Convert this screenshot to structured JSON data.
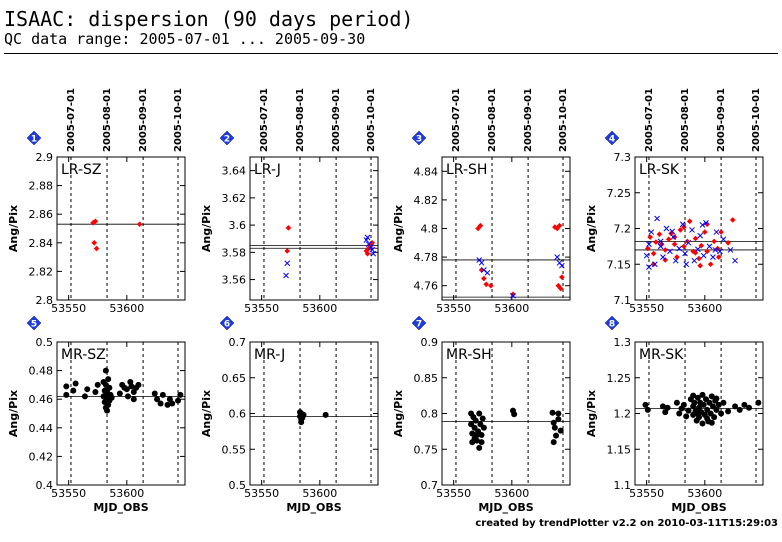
{
  "header": {
    "title": "ISAAC: dispersion (90 days period)",
    "subtitle": "QC data range: 2005-07-01 ... 2005-09-30"
  },
  "footer": {
    "text": "created by trendPlotter v2.2 on 2010-03-11T15:29:03"
  },
  "date_ticks": [
    "2005-07-01",
    "2005-08-01",
    "2005-09-01",
    "2005-10-01"
  ],
  "date_tick_mjd": [
    53552,
    53583,
    53614,
    53644
  ],
  "colors": {
    "series1": "#ff0000",
    "series2": "#0000ff",
    "mr": "#000000",
    "badge": "#1e3cdc"
  },
  "chart_data": [
    {
      "type": "scatter",
      "panel_number": "1",
      "label": "LR-SZ",
      "xlim": [
        53540,
        53650
      ],
      "ylim": [
        2.8,
        2.9
      ],
      "yticks": [
        2.8,
        2.82,
        2.84,
        2.86,
        2.88,
        2.9
      ],
      "xticks": [
        53550,
        53600
      ],
      "ylabel": "Ang/Pix",
      "xlabel": "",
      "reference_lines": [
        2.853
      ],
      "series": [
        {
          "marker": "diamond",
          "color": "#ff0000",
          "x": [
            53571,
            53573,
            53572,
            53574,
            53611
          ],
          "y": [
            2.854,
            2.855,
            2.84,
            2.836,
            2.853
          ]
        }
      ]
    },
    {
      "type": "scatter",
      "panel_number": "2",
      "label": "LR-J",
      "xlim": [
        53540,
        53650
      ],
      "ylim": [
        3.545,
        3.65
      ],
      "yticks": [
        3.56,
        3.58,
        3.6,
        3.62,
        3.64
      ],
      "xticks": [
        53550,
        53600
      ],
      "ylabel": "Ang/Pix",
      "xlabel": "",
      "reference_lines": [
        3.583,
        3.585
      ],
      "series": [
        {
          "marker": "diamond",
          "color": "#ff0000",
          "x": [
            53573,
            53572,
            53640,
            53642,
            53644,
            53645,
            53641
          ],
          "y": [
            3.598,
            3.581,
            3.581,
            3.583,
            3.585,
            3.587,
            3.579
          ]
        },
        {
          "marker": "cross",
          "color": "#0000ff",
          "x": [
            53572,
            53571,
            53640,
            53642,
            53644,
            53645,
            53646,
            53641
          ],
          "y": [
            3.572,
            3.563,
            3.589,
            3.586,
            3.584,
            3.582,
            3.579,
            3.591
          ]
        }
      ]
    },
    {
      "type": "scatter",
      "panel_number": "3",
      "label": "LR-SH",
      "xlim": [
        53540,
        53650
      ],
      "ylim": [
        4.75,
        4.85
      ],
      "yticks": [
        4.76,
        4.78,
        4.8,
        4.82,
        4.84
      ],
      "xticks": [
        53550,
        53600
      ],
      "ylabel": "Ang/Pix",
      "xlabel": "",
      "reference_lines": [
        4.778,
        4.752
      ],
      "series": [
        {
          "marker": "diamond",
          "color": "#ff0000",
          "x": [
            53571,
            53573,
            53574,
            53576,
            53578,
            53582,
            53601,
            53637,
            53639,
            53641,
            53643,
            53640,
            53642
          ],
          "y": [
            4.8,
            4.802,
            4.771,
            4.765,
            4.761,
            4.76,
            4.754,
            4.801,
            4.8,
            4.802,
            4.766,
            4.76,
            4.758
          ]
        },
        {
          "marker": "cross",
          "color": "#0000ff",
          "x": [
            53572,
            53574,
            53576,
            53579,
            53601,
            53639,
            53641,
            53643
          ],
          "y": [
            4.778,
            4.776,
            4.771,
            4.769,
            4.753,
            4.78,
            4.776,
            4.774
          ]
        }
      ]
    },
    {
      "type": "scatter",
      "panel_number": "4",
      "label": "LR-SK",
      "xlim": [
        53540,
        53650
      ],
      "ylim": [
        7.1,
        7.3
      ],
      "yticks": [
        7.1,
        7.15,
        7.2,
        7.25,
        7.3
      ],
      "xticks": [
        53550,
        53600
      ],
      "ylabel": "Ang/Pix",
      "xlabel": "",
      "reference_lines": [
        7.182,
        7.17
      ],
      "series": [
        {
          "marker": "diamond",
          "color": "#ff0000",
          "x": [
            53551,
            53553,
            53556,
            53558,
            53561,
            53563,
            53566,
            53569,
            53571,
            53574,
            53576,
            53579,
            53582,
            53585,
            53587,
            53590,
            53592,
            53595,
            53597,
            53600,
            53602,
            53605,
            53608,
            53611,
            53614,
            53620,
            53624,
            53556,
            53566,
            53574,
            53582,
            53592,
            53602,
            53612,
            53596
          ],
          "y": [
            7.172,
            7.188,
            7.165,
            7.181,
            7.192,
            7.178,
            7.17,
            7.185,
            7.193,
            7.178,
            7.16,
            7.198,
            7.175,
            7.182,
            7.21,
            7.168,
            7.186,
            7.158,
            7.176,
            7.195,
            7.168,
            7.15,
            7.182,
            7.172,
            7.195,
            7.18,
            7.212,
            7.15,
            7.156,
            7.188,
            7.202,
            7.166,
            7.206,
            7.16,
            7.148
          ]
        },
        {
          "marker": "cross",
          "color": "#0000ff",
          "x": [
            53550,
            53552,
            53554,
            53557,
            53559,
            53562,
            53564,
            53567,
            53570,
            53573,
            53575,
            53578,
            53581,
            53583,
            53586,
            53589,
            53591,
            53594,
            53596,
            53599,
            53601,
            53604,
            53607,
            53610,
            53613,
            53616,
            53622,
            53626,
            53552,
            53562,
            53572,
            53584,
            53598,
            53609
          ],
          "y": [
            7.162,
            7.178,
            7.195,
            7.15,
            7.214,
            7.175,
            7.16,
            7.2,
            7.168,
            7.188,
            7.155,
            7.172,
            7.206,
            7.165,
            7.18,
            7.198,
            7.155,
            7.171,
            7.19,
            7.162,
            7.208,
            7.175,
            7.16,
            7.195,
            7.168,
            7.185,
            7.17,
            7.155,
            7.146,
            7.182,
            7.196,
            7.15,
            7.205,
            7.17
          ]
        }
      ]
    },
    {
      "type": "scatter",
      "panel_number": "5",
      "label": "MR-SZ",
      "xlim": [
        53540,
        53650
      ],
      "ylim": [
        0.4,
        0.5
      ],
      "yticks": [
        0.4,
        0.42,
        0.44,
        0.46,
        0.48,
        0.5
      ],
      "xticks": [
        53550,
        53600
      ],
      "ylabel": "Ang/Pix",
      "xlabel": "MJD_OBS",
      "reference_lines": [
        0.462
      ],
      "series": [
        {
          "marker": "circle",
          "color": "#000000",
          "x": [
            53548,
            53548,
            53554,
            53556,
            53564,
            53566,
            53573,
            53575,
            53580,
            53580,
            53581,
            53581,
            53582,
            53582,
            53582,
            53583,
            53583,
            53583,
            53584,
            53584,
            53584,
            53585,
            53585,
            53586,
            53587,
            53594,
            53596,
            53598,
            53600,
            53601,
            53603,
            53604,
            53606,
            53606,
            53608,
            53610,
            53624,
            53626,
            53629,
            53631,
            53635,
            53637,
            53639,
            53644,
            53646
          ],
          "y": [
            0.469,
            0.463,
            0.466,
            0.471,
            0.462,
            0.467,
            0.465,
            0.47,
            0.472,
            0.462,
            0.458,
            0.466,
            0.48,
            0.47,
            0.454,
            0.465,
            0.46,
            0.452,
            0.474,
            0.462,
            0.456,
            0.468,
            0.459,
            0.463,
            0.461,
            0.464,
            0.47,
            0.468,
            0.467,
            0.462,
            0.472,
            0.469,
            0.465,
            0.46,
            0.468,
            0.47,
            0.464,
            0.46,
            0.457,
            0.463,
            0.456,
            0.46,
            0.457,
            0.459,
            0.463
          ]
        }
      ]
    },
    {
      "type": "scatter",
      "panel_number": "6",
      "label": "MR-J",
      "xlim": [
        53540,
        53650
      ],
      "ylim": [
        0.5,
        0.7
      ],
      "yticks": [
        0.5,
        0.55,
        0.6,
        0.65,
        0.7
      ],
      "xticks": [
        53550,
        53600
      ],
      "ylabel": "Ang/Pix",
      "xlabel": "MJD_OBS",
      "reference_lines": [
        0.596
      ],
      "series": [
        {
          "marker": "circle",
          "color": "#000000",
          "x": [
            53583,
            53583,
            53584,
            53584,
            53585,
            53585,
            53586,
            53605
          ],
          "y": [
            0.602,
            0.596,
            0.592,
            0.588,
            0.599,
            0.594,
            0.598,
            0.598
          ]
        }
      ]
    },
    {
      "type": "scatter",
      "panel_number": "7",
      "label": "MR-SH",
      "xlim": [
        53540,
        53650
      ],
      "ylim": [
        0.7,
        0.9
      ],
      "yticks": [
        0.7,
        0.75,
        0.8,
        0.85,
        0.9
      ],
      "xticks": [
        53550,
        53600
      ],
      "ylabel": "Ang/Pix",
      "xlabel": "MJD_OBS",
      "reference_lines": [
        0.789
      ],
      "series": [
        {
          "marker": "circle",
          "color": "#000000",
          "x": [
            53565,
            53565,
            53566,
            53567,
            53568,
            53568,
            53569,
            53570,
            53571,
            53572,
            53573,
            53574,
            53575,
            53576,
            53566,
            53570,
            53574,
            53572,
            53601,
            53602,
            53635,
            53636,
            53637,
            53638,
            53640,
            53642,
            53636,
            53640
          ],
          "y": [
            0.8,
            0.785,
            0.772,
            0.795,
            0.765,
            0.78,
            0.79,
            0.762,
            0.775,
            0.8,
            0.785,
            0.77,
            0.793,
            0.78,
            0.76,
            0.77,
            0.76,
            0.752,
            0.804,
            0.799,
            0.801,
            0.787,
            0.78,
            0.769,
            0.792,
            0.776,
            0.76,
            0.8
          ]
        }
      ]
    },
    {
      "type": "scatter",
      "panel_number": "8",
      "label": "MR-SK",
      "xlim": [
        53540,
        53650
      ],
      "ylim": [
        1.1,
        1.3
      ],
      "yticks": [
        1.1,
        1.15,
        1.2,
        1.25,
        1.3
      ],
      "xticks": [
        53550,
        53600
      ],
      "ylabel": "Ang/Pix",
      "xlabel": "MJD_OBS",
      "reference_lines": [
        1.207
      ],
      "series": [
        {
          "marker": "circle",
          "color": "#000000",
          "x": [
            53549,
            53551,
            53564,
            53566,
            53568,
            53576,
            53578,
            53580,
            53582,
            53584,
            53586,
            53588,
            53590,
            53590,
            53591,
            53592,
            53593,
            53594,
            53595,
            53595,
            53596,
            53597,
            53598,
            53599,
            53600,
            53601,
            53602,
            53603,
            53604,
            53605,
            53606,
            53607,
            53608,
            53609,
            53610,
            53612,
            53614,
            53616,
            53620,
            53626,
            53630,
            53634,
            53638,
            53646,
            53598,
            53594,
            53602,
            53606,
            53590,
            53610
          ],
          "y": [
            1.212,
            1.205,
            1.21,
            1.202,
            1.208,
            1.215,
            1.2,
            1.207,
            1.212,
            1.196,
            1.204,
            1.22,
            1.21,
            1.198,
            1.215,
            1.203,
            1.19,
            1.222,
            1.208,
            1.195,
            1.215,
            1.202,
            1.226,
            1.212,
            1.198,
            1.22,
            1.205,
            1.189,
            1.215,
            1.2,
            1.224,
            1.21,
            1.195,
            1.218,
            1.205,
            1.212,
            1.2,
            1.215,
            1.203,
            1.21,
            1.205,
            1.212,
            1.208,
            1.215,
            1.186,
            1.2,
            1.193,
            1.187,
            1.225,
            1.221
          ]
        }
      ]
    }
  ]
}
